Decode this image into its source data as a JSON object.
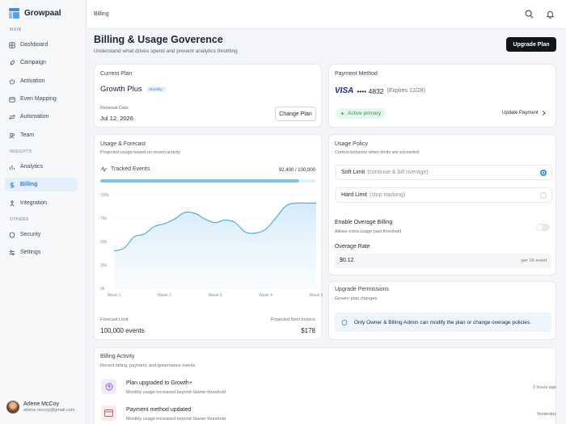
{
  "app": {
    "name": "Growpaal"
  },
  "sidebar": {
    "sections": {
      "main": "MAIN",
      "insights": "INSIGHTS",
      "others": "OTHERS"
    },
    "items": [
      {
        "label": "Dashboard",
        "icon": "dashboard-icon"
      },
      {
        "label": "Campaign",
        "icon": "rocket-icon"
      },
      {
        "label": "Activation",
        "icon": "power-icon"
      },
      {
        "label": "Even Mapping",
        "icon": "calendar-icon"
      },
      {
        "label": "Automation",
        "icon": "arrows-icon"
      },
      {
        "label": "Team",
        "icon": "users-icon"
      },
      {
        "label": "Analytics",
        "icon": "analytics-icon"
      },
      {
        "label": "Billing",
        "icon": "dollar-icon",
        "active": true
      },
      {
        "label": "Integration",
        "icon": "integration-icon"
      },
      {
        "label": "Security",
        "icon": "shield-icon"
      },
      {
        "label": "Settings",
        "icon": "settings-icon"
      }
    ],
    "profile": {
      "name": "Arlene McCoy",
      "email": "arlene.mccoy@gmail.com"
    }
  },
  "topbar": {
    "title": "Billing"
  },
  "page": {
    "title": "Billing & Usage Goverence",
    "subtitle": "Understand what drives spend and prevent analytics throttling",
    "upgrade_label": "Upgrade Plan"
  },
  "current_plan": {
    "title": "Current Plan",
    "plan_name": "Growth Plus",
    "badge": "Monthly",
    "renewal_label": "Renewal Date",
    "renewal_date": "Jul 12, 2026",
    "change_label": "Change Plan"
  },
  "payment": {
    "title": "Payment Method",
    "brand": "VISA",
    "masked": "•••• 4832",
    "expires": "(Expires 12/28)",
    "status": "Active primary",
    "update_label": "Update Payment"
  },
  "usage": {
    "title": "Usage & Forecast",
    "subtitle": "Projected usage based on recent activity",
    "metric_label": "Tracked Events",
    "metric_value": "92,400 / 100,000",
    "progress": 0.924,
    "forecast_label": "Forecast Limit",
    "forecast_value": "100,000 events",
    "invoice_label": "Projected Next Invoice",
    "invoice_value": "$178"
  },
  "chart_data": {
    "type": "area",
    "y_ticks": [
      "100k",
      "75k",
      "50k",
      "25k",
      "0k"
    ],
    "x_ticks": [
      "Week 1",
      "Week 2",
      "Week 3",
      "Week 4",
      "Week 5"
    ],
    "ylim": [
      0,
      100000
    ],
    "x": [
      1,
      1.2,
      1.4,
      1.6,
      1.8,
      2,
      2.2,
      2.4,
      2.6,
      2.8,
      3,
      3.2,
      3.4,
      3.6,
      3.8,
      4,
      4.2,
      4.4,
      4.6,
      4.8,
      5
    ],
    "values": [
      40000,
      43000,
      55000,
      58000,
      66000,
      69000,
      74000,
      81000,
      80000,
      74000,
      70000,
      73000,
      70000,
      60000,
      59000,
      63000,
      75000,
      88000,
      91000,
      91000,
      91000
    ]
  },
  "policy": {
    "title": "Usage Policy",
    "subtitle": "Control behavior when limits are exceeded",
    "soft_label": "Soft Limit",
    "soft_hint": "(continue & bill overage)",
    "hard_label": "Hard Limit",
    "hard_hint": "(stop tracking)",
    "overage_title": "Enable Overage Billing",
    "overage_sub": "Allows extra usage past threshold",
    "rate_title": "Overage Rate",
    "rate_value": "$0.12",
    "rate_unit": "per 1K event"
  },
  "permissions": {
    "title": "Upgrade Permissions",
    "subtitle": "Govern plan changes",
    "note": "Only Owner & Billing Admin can modify the plan or change overage policies."
  },
  "activity": {
    "title": "Billing Activity",
    "subtitle": "Recent billing, payment, and governance events",
    "items": [
      {
        "title": "Plan upgraded to Growth+",
        "desc": "Monthly usage increased beyond Starter threshold",
        "time": "2 hours ago"
      },
      {
        "title": "Payment method updated",
        "desc": "Monthly usage increased beyond Starter threshold",
        "time": "Yesterday"
      }
    ]
  }
}
